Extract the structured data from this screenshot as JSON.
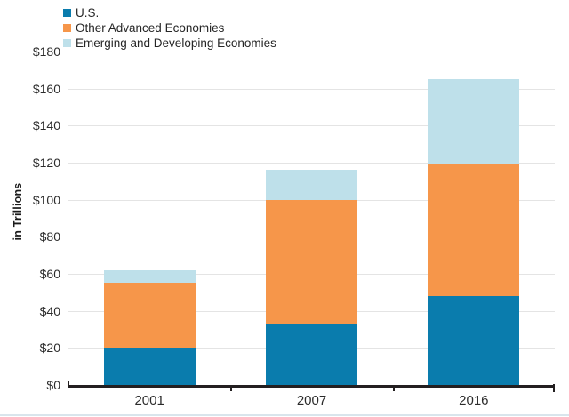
{
  "figure": {
    "background": "#ffffff",
    "bottom_border_color": "#d9e5ec",
    "gridline_color": "#e4e4e4",
    "axis_color": "#231f20",
    "text_color": "#2b2b2b"
  },
  "legend": {
    "items": [
      {
        "label": "U.S.",
        "color": "#0a7cad"
      },
      {
        "label": "Other Advanced Economies",
        "color": "#f6964a"
      },
      {
        "label": "Emerging and Developing Economies",
        "color": "#bee0ea"
      }
    ]
  },
  "chart_data": {
    "type": "bar",
    "stacked": true,
    "title": "",
    "categories": [
      "2001",
      "2007",
      "2016"
    ],
    "series": [
      {
        "name": "U.S.",
        "color": "#0a7cad",
        "values": [
          20,
          33,
          48
        ]
      },
      {
        "name": "Other Advanced Economies",
        "color": "#f6964a",
        "values": [
          35,
          67,
          71
        ]
      },
      {
        "name": "Emerging and Developing Economies",
        "color": "#bee0ea",
        "values": [
          7,
          16,
          46
        ]
      }
    ],
    "totals": [
      62,
      116,
      165
    ],
    "ylabel": "in Trillions",
    "xlabel": "",
    "ylim": [
      0,
      180
    ],
    "ytick_step": 20,
    "ytick_prefix": "$",
    "yticklabels": [
      "$0",
      "$20",
      "$40",
      "$60",
      "$80",
      "$100",
      "$120",
      "$140",
      "$160",
      "$180"
    ],
    "grid": true,
    "legend_position": "top-left"
  }
}
